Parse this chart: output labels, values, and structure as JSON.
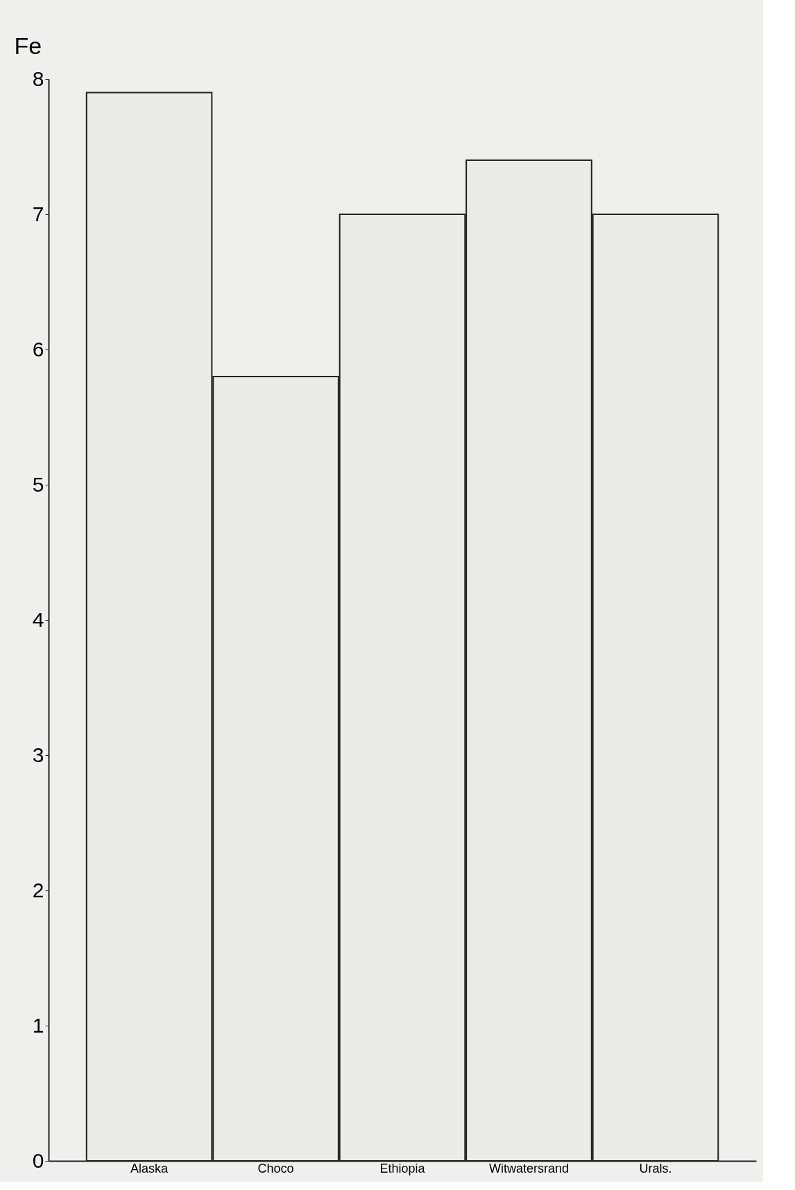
{
  "chart_data": {
    "type": "bar",
    "ylabel": "Fe",
    "categories": [
      "Alaska",
      "Choco",
      "Ethiopia",
      "Witwatersrand",
      "Urals."
    ],
    "values": [
      7.9,
      5.8,
      7.0,
      7.4,
      7.0
    ],
    "color": "#ecebe6",
    "ylim": [
      0,
      8
    ],
    "yticks": [
      0,
      1,
      2,
      3,
      4,
      5,
      6,
      7,
      8
    ],
    "grid": false,
    "legend": false
  }
}
